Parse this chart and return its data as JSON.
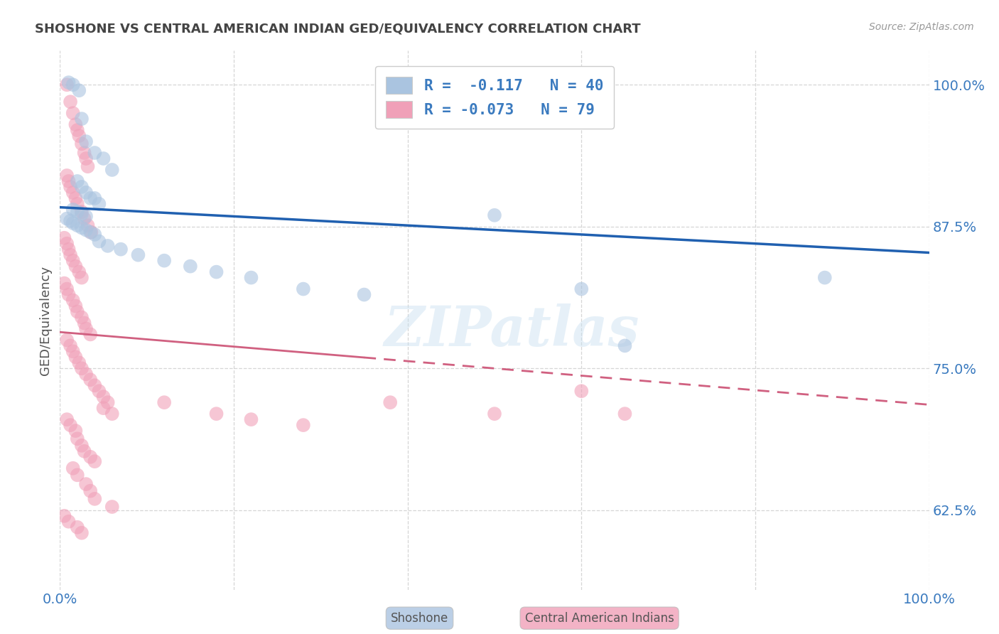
{
  "title": "SHOSHONE VS CENTRAL AMERICAN INDIAN GED/EQUIVALENCY CORRELATION CHART",
  "source": "Source: ZipAtlas.com",
  "ylabel": "GED/Equivalency",
  "xlim": [
    0.0,
    1.0
  ],
  "ylim": [
    0.555,
    1.03
  ],
  "yticks": [
    0.625,
    0.75,
    0.875,
    1.0
  ],
  "ytick_labels": [
    "62.5%",
    "75.0%",
    "87.5%",
    "100.0%"
  ],
  "xticks": [
    0.0,
    0.2,
    0.4,
    0.6,
    0.8,
    1.0
  ],
  "xtick_labels": [
    "0.0%",
    "",
    "",
    "",
    "",
    "100.0%"
  ],
  "shoshone_color": "#aac4e0",
  "central_color": "#f0a0b8",
  "trend_shoshone_color": "#2060b0",
  "trend_central_color": "#d06080",
  "watermark": "ZIPatlas",
  "background_color": "#ffffff",
  "shoshone_trend_start": 0.892,
  "shoshone_trend_end": 0.852,
  "central_trend_start": 0.782,
  "central_trend_end": 0.718,
  "shoshone_points": [
    [
      0.01,
      1.002
    ],
    [
      0.015,
      1.0
    ],
    [
      0.022,
      0.995
    ],
    [
      0.025,
      0.97
    ],
    [
      0.03,
      0.95
    ],
    [
      0.04,
      0.94
    ],
    [
      0.05,
      0.935
    ],
    [
      0.06,
      0.925
    ],
    [
      0.02,
      0.915
    ],
    [
      0.025,
      0.91
    ],
    [
      0.03,
      0.905
    ],
    [
      0.035,
      0.9
    ],
    [
      0.04,
      0.9
    ],
    [
      0.045,
      0.895
    ],
    [
      0.015,
      0.89
    ],
    [
      0.02,
      0.888
    ],
    [
      0.025,
      0.886
    ],
    [
      0.03,
      0.884
    ],
    [
      0.008,
      0.882
    ],
    [
      0.012,
      0.88
    ],
    [
      0.015,
      0.878
    ],
    [
      0.02,
      0.876
    ],
    [
      0.025,
      0.874
    ],
    [
      0.03,
      0.872
    ],
    [
      0.035,
      0.87
    ],
    [
      0.04,
      0.868
    ],
    [
      0.045,
      0.862
    ],
    [
      0.055,
      0.858
    ],
    [
      0.07,
      0.855
    ],
    [
      0.09,
      0.85
    ],
    [
      0.12,
      0.845
    ],
    [
      0.15,
      0.84
    ],
    [
      0.18,
      0.835
    ],
    [
      0.22,
      0.83
    ],
    [
      0.28,
      0.82
    ],
    [
      0.35,
      0.815
    ],
    [
      0.5,
      0.885
    ],
    [
      0.6,
      0.82
    ],
    [
      0.65,
      0.77
    ],
    [
      0.88,
      0.83
    ]
  ],
  "central_points": [
    [
      0.008,
      1.0
    ],
    [
      0.012,
      0.985
    ],
    [
      0.015,
      0.975
    ],
    [
      0.018,
      0.965
    ],
    [
      0.02,
      0.96
    ],
    [
      0.022,
      0.955
    ],
    [
      0.025,
      0.948
    ],
    [
      0.028,
      0.94
    ],
    [
      0.03,
      0.935
    ],
    [
      0.032,
      0.928
    ],
    [
      0.008,
      0.92
    ],
    [
      0.01,
      0.915
    ],
    [
      0.012,
      0.91
    ],
    [
      0.015,
      0.905
    ],
    [
      0.018,
      0.9
    ],
    [
      0.02,
      0.895
    ],
    [
      0.025,
      0.888
    ],
    [
      0.028,
      0.882
    ],
    [
      0.032,
      0.876
    ],
    [
      0.036,
      0.87
    ],
    [
      0.005,
      0.865
    ],
    [
      0.008,
      0.86
    ],
    [
      0.01,
      0.855
    ],
    [
      0.012,
      0.85
    ],
    [
      0.015,
      0.845
    ],
    [
      0.018,
      0.84
    ],
    [
      0.022,
      0.835
    ],
    [
      0.025,
      0.83
    ],
    [
      0.005,
      0.825
    ],
    [
      0.008,
      0.82
    ],
    [
      0.01,
      0.815
    ],
    [
      0.015,
      0.81
    ],
    [
      0.018,
      0.805
    ],
    [
      0.02,
      0.8
    ],
    [
      0.025,
      0.795
    ],
    [
      0.028,
      0.79
    ],
    [
      0.03,
      0.785
    ],
    [
      0.035,
      0.78
    ],
    [
      0.008,
      0.775
    ],
    [
      0.012,
      0.77
    ],
    [
      0.015,
      0.765
    ],
    [
      0.018,
      0.76
    ],
    [
      0.022,
      0.755
    ],
    [
      0.025,
      0.75
    ],
    [
      0.03,
      0.745
    ],
    [
      0.035,
      0.74
    ],
    [
      0.04,
      0.735
    ],
    [
      0.045,
      0.73
    ],
    [
      0.05,
      0.725
    ],
    [
      0.055,
      0.72
    ],
    [
      0.05,
      0.715
    ],
    [
      0.06,
      0.71
    ],
    [
      0.008,
      0.705
    ],
    [
      0.012,
      0.7
    ],
    [
      0.018,
      0.695
    ],
    [
      0.02,
      0.688
    ],
    [
      0.025,
      0.682
    ],
    [
      0.028,
      0.677
    ],
    [
      0.035,
      0.672
    ],
    [
      0.04,
      0.668
    ],
    [
      0.015,
      0.662
    ],
    [
      0.02,
      0.656
    ],
    [
      0.03,
      0.648
    ],
    [
      0.035,
      0.642
    ],
    [
      0.04,
      0.635
    ],
    [
      0.06,
      0.628
    ],
    [
      0.005,
      0.62
    ],
    [
      0.01,
      0.615
    ],
    [
      0.02,
      0.61
    ],
    [
      0.025,
      0.605
    ],
    [
      0.12,
      0.72
    ],
    [
      0.18,
      0.71
    ],
    [
      0.22,
      0.705
    ],
    [
      0.28,
      0.7
    ],
    [
      0.38,
      0.72
    ],
    [
      0.5,
      0.71
    ],
    [
      0.65,
      0.71
    ],
    [
      0.6,
      0.73
    ]
  ],
  "grid_color": "#cccccc",
  "axis_label_color": "#3a7abf",
  "title_color": "#444444",
  "legend_text_color": "#3a7abf"
}
